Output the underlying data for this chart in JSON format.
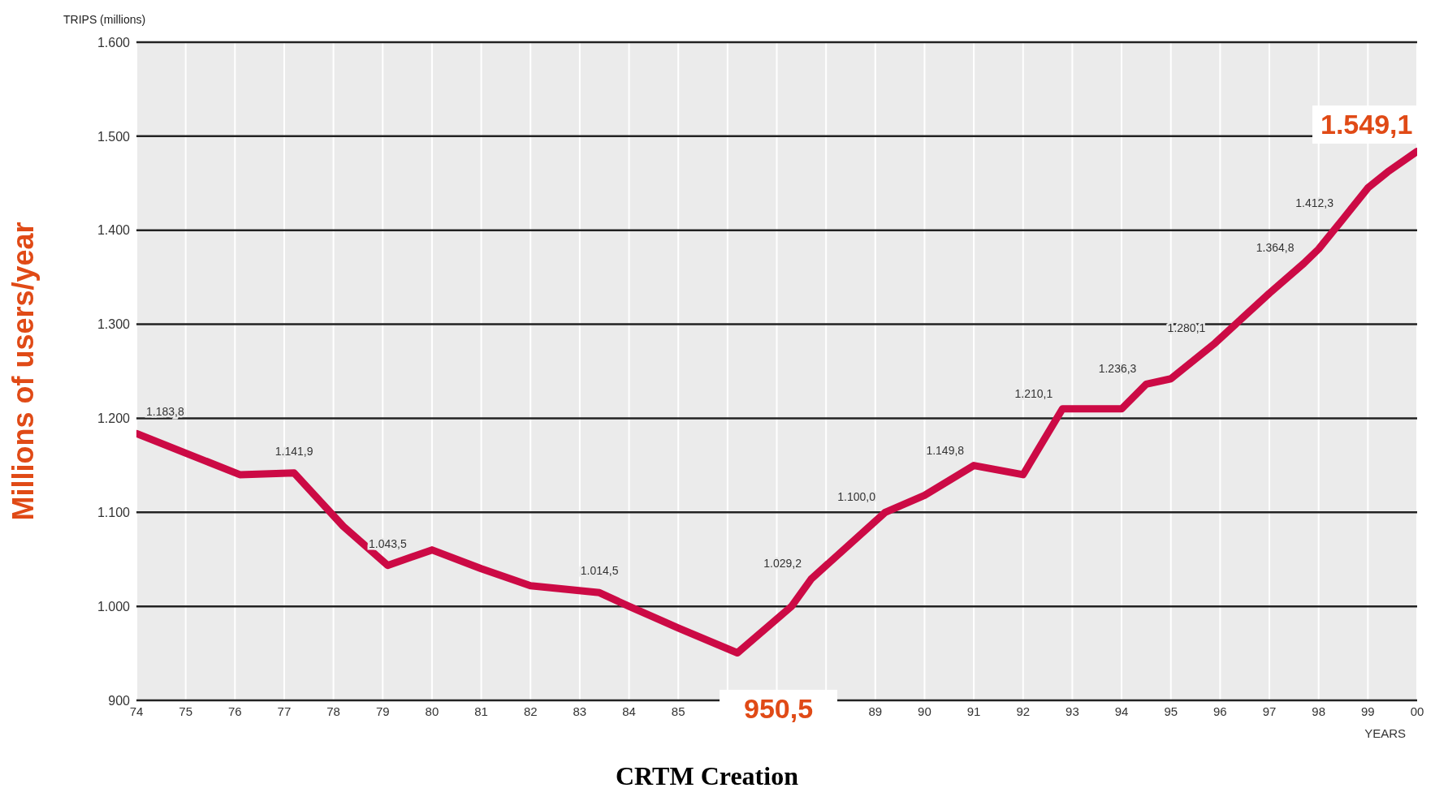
{
  "chart_data": {
    "type": "line",
    "ylabel": "Millions of users/year",
    "xlabel": "YEARS",
    "annotations": [
      "TRIPS (millions)",
      "1.549,1",
      "950,5",
      "CRTM Creation"
    ],
    "x": [
      1974,
      1976.1,
      1977.2,
      1978.2,
      1979.1,
      1980,
      1981,
      1982,
      1983.4,
      1984,
      1985,
      1986.2,
      1987.3,
      1987.7,
      1989.2,
      1990,
      1991,
      1992,
      1992.8,
      1994,
      1994.5,
      1995,
      1995.9,
      1997,
      1997.7,
      1998,
      1998.5,
      1999,
      1999.4,
      2000
    ],
    "series": [
      {
        "color": "#cc0a45",
        "values": [
          1183.8,
          1140,
          1141.9,
          1085,
          1043.5,
          1060,
          1040,
          1022,
          1014.5,
          1000,
          977,
          950.5,
          1000,
          1029.2,
          1100.0,
          1118,
          1149.8,
          1140,
          1210.1,
          1210,
          1236.3,
          1242,
          1280.1,
          1333,
          1364.8,
          1380,
          1412.3,
          1445,
          1462,
          1484
        ],
        "value_labels": [
          "1.183,8",
          null,
          "1.141,9",
          null,
          "1.043,5",
          null,
          null,
          null,
          "1.014,5",
          null,
          null,
          null,
          null,
          "1.029,2",
          "1.100,0",
          null,
          "1.149,8",
          null,
          "1.210,1",
          null,
          "1.236,3",
          null,
          "1.280,1",
          null,
          "1.364,8",
          null,
          "1.412,3",
          null,
          null,
          null
        ]
      }
    ],
    "xlim": [
      1974,
      2000
    ],
    "xticks": [
      {
        "value": 1974,
        "label": "74"
      },
      {
        "value": 1975,
        "label": "75"
      },
      {
        "value": 1976,
        "label": "76"
      },
      {
        "value": 1977,
        "label": "77"
      },
      {
        "value": 1978,
        "label": "78"
      },
      {
        "value": 1979,
        "label": "79"
      },
      {
        "value": 1980,
        "label": "80"
      },
      {
        "value": 1981,
        "label": "81"
      },
      {
        "value": 1982,
        "label": "82"
      },
      {
        "value": 1983,
        "label": "83"
      },
      {
        "value": 1984,
        "label": "84"
      },
      {
        "value": 1985,
        "label": "85"
      },
      {
        "value": 1986,
        "label": null
      },
      {
        "value": 1987,
        "label": null
      },
      {
        "value": 1988,
        "label": null
      },
      {
        "value": 1989,
        "label": "89"
      },
      {
        "value": 1990,
        "label": "90"
      },
      {
        "value": 1991,
        "label": "91"
      },
      {
        "value": 1992,
        "label": "92"
      },
      {
        "value": 1993,
        "label": "93"
      },
      {
        "value": 1994,
        "label": "94"
      },
      {
        "value": 1995,
        "label": "95"
      },
      {
        "value": 1996,
        "label": "96"
      },
      {
        "value": 1997,
        "label": "97"
      },
      {
        "value": 1998,
        "label": "98"
      },
      {
        "value": 1999,
        "label": "99"
      },
      {
        "value": 2000,
        "label": "00"
      }
    ],
    "ylim": [
      900,
      1600
    ],
    "yticks": [
      {
        "value": 900,
        "label": "900"
      },
      {
        "value": 1000,
        "label": "1.000"
      },
      {
        "value": 1100,
        "label": "1.100"
      },
      {
        "value": 1200,
        "label": "1.200"
      },
      {
        "value": 1300,
        "label": "1.300"
      },
      {
        "value": 1400,
        "label": "1.400"
      },
      {
        "value": 1500,
        "label": "1.500"
      },
      {
        "value": 1600,
        "label": "1.600"
      }
    ],
    "grid": true,
    "marker": "none",
    "line_style": "solid"
  }
}
